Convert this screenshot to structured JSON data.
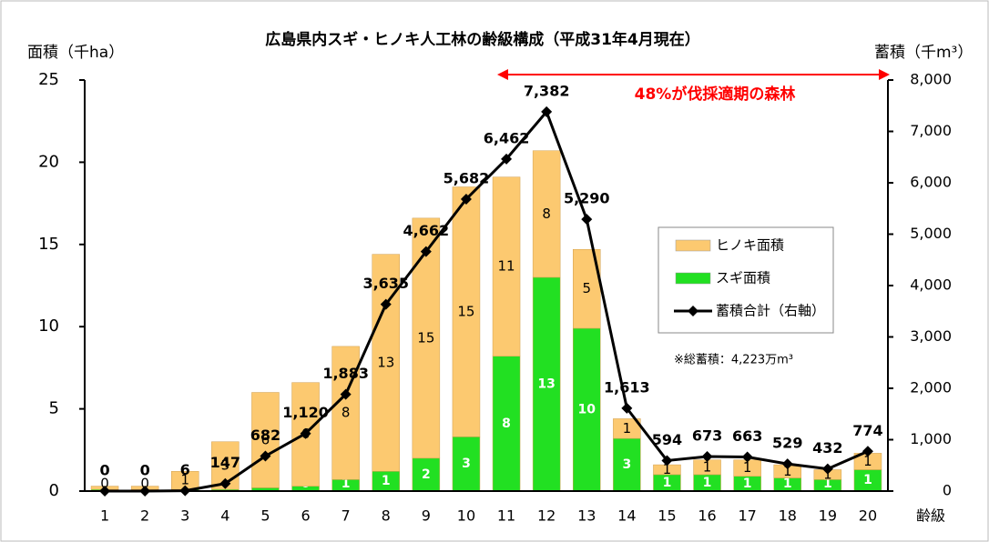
{
  "chart_data": {
    "type": "bar",
    "title": "広島県内スギ・ヒノキ人工林の齢級構成（平成31年4月現在）",
    "y_label": "面積（千ha）",
    "y2_label": "蓄積（千m³）",
    "x_label": "齢級",
    "annotation": "48%が伐採適期の森林",
    "note": "※総蓄積：4,223万m³",
    "categories": [
      "1",
      "2",
      "3",
      "4",
      "5",
      "6",
      "7",
      "8",
      "9",
      "10",
      "11",
      "12",
      "13",
      "14",
      "15",
      "16",
      "17",
      "18",
      "19",
      "20"
    ],
    "series": [
      {
        "name": "ヒノキ面積",
        "color": "#fcc970",
        "type": "bar",
        "values": [
          0.2,
          0.2,
          1.1,
          2.9,
          5.8,
          6.3,
          8.1,
          13.2,
          14.6,
          15.2,
          10.9,
          7.7,
          4.8,
          1.2,
          0.6,
          0.9,
          1.0,
          0.8,
          0.6,
          1.0
        ],
        "value_labels": [
          "0",
          "0",
          "1",
          "3",
          "6",
          "6",
          "8",
          "13",
          "15",
          "15",
          "11",
          "8",
          "5",
          "1",
          "1",
          "1",
          "1",
          "1",
          "1",
          "1"
        ]
      },
      {
        "name": "スギ面積",
        "color": "#22e022",
        "type": "bar",
        "values": [
          0.1,
          0.1,
          0.1,
          0.1,
          0.2,
          0.3,
          0.7,
          1.2,
          2.0,
          3.3,
          8.2,
          13.0,
          9.9,
          3.2,
          1.0,
          1.0,
          0.9,
          0.8,
          0.7,
          1.3
        ],
        "value_labels": [
          "0",
          "0",
          "0",
          "0",
          "0",
          "0",
          "1",
          "1",
          "2",
          "3",
          "8",
          "13",
          "10",
          "3",
          "1",
          "1",
          "1",
          "1",
          "1",
          "1"
        ]
      },
      {
        "name": "蓄積合計（右軸）",
        "color": "#000000",
        "type": "line",
        "axis": "y2",
        "values": [
          0,
          0,
          6,
          147,
          682,
          1120,
          1883,
          3635,
          4662,
          5682,
          6462,
          7382,
          5290,
          1613,
          594,
          673,
          663,
          529,
          432,
          774
        ],
        "value_labels": [
          "0",
          "0",
          "6",
          "147",
          "682",
          "1,120",
          "1,883",
          "3,635",
          "4,662",
          "5,682",
          "6,462",
          "7,382",
          "5,290",
          "1,613",
          "594",
          "673",
          "663",
          "529",
          "432",
          "774"
        ]
      }
    ],
    "ylim": [
      0,
      25
    ],
    "yticks": [
      0,
      5,
      10,
      15,
      20,
      25
    ],
    "y2lim": [
      0,
      8000
    ],
    "y2ticks": [
      0,
      {
        "value": 1000,
        "label": "1,000"
      },
      {
        "value": 2000,
        "label": "2,000"
      },
      {
        "value": 3000,
        "label": "3,000"
      },
      {
        "value": 4000,
        "label": "4,000"
      },
      {
        "value": 5000,
        "label": "5,000"
      },
      {
        "value": 6000,
        "label": "6,000"
      },
      {
        "value": 7000,
        "label": "7,000"
      },
      {
        "value": 8000,
        "label": "8,000"
      }
    ],
    "annotation_color": "#ff0000"
  }
}
